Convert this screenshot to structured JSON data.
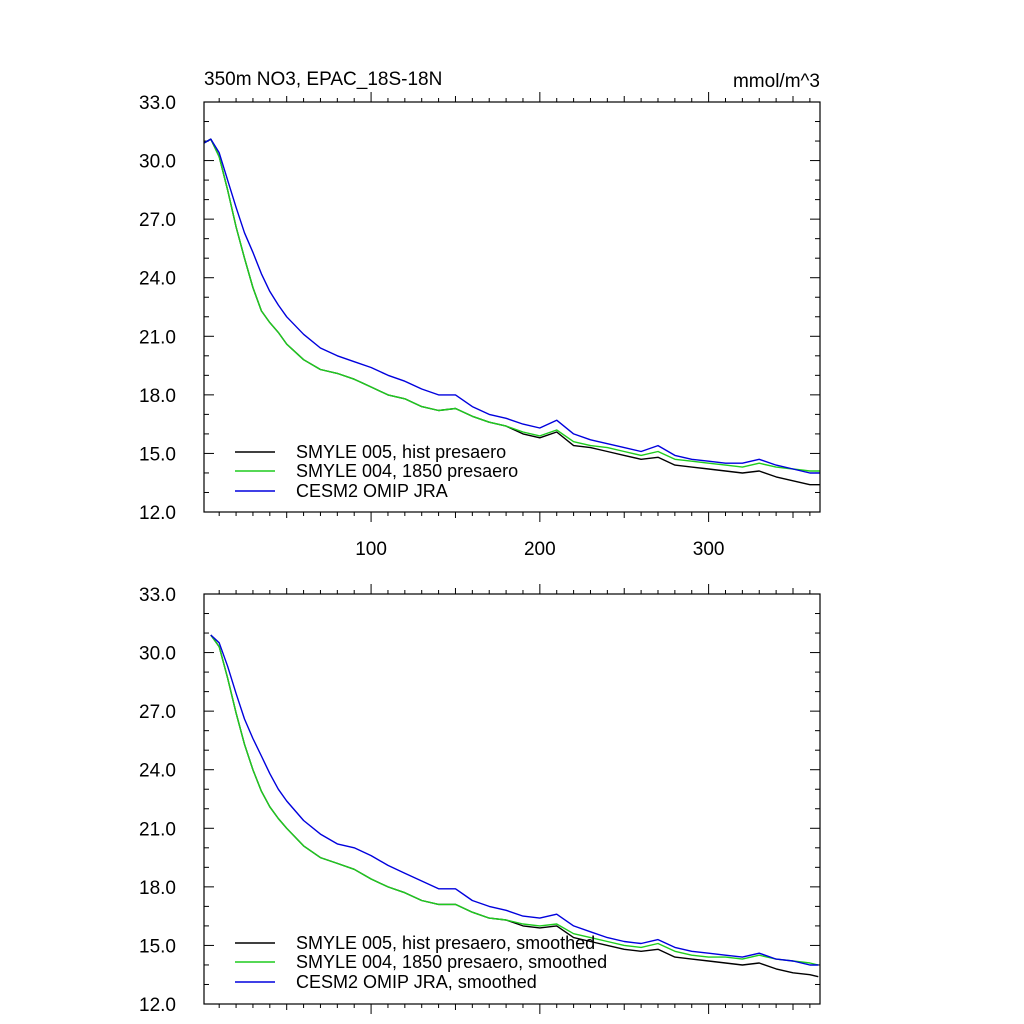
{
  "chart_data": [
    {
      "type": "line",
      "title": "350m NO3, EPAC_18S-18N",
      "units": "mmol/m^3",
      "xlim": [
        1,
        366
      ],
      "ylim": [
        12,
        33
      ],
      "yticks": [
        {
          "v": 12,
          "label": "12.0"
        },
        {
          "v": 15,
          "label": "15.0"
        },
        {
          "v": 18,
          "label": "18.0"
        },
        {
          "v": 21,
          "label": "21.0"
        },
        {
          "v": 24,
          "label": "24.0"
        },
        {
          "v": 27,
          "label": "27.0"
        },
        {
          "v": 30,
          "label": "30.0"
        },
        {
          "v": 33,
          "label": "33.0"
        }
      ],
      "xticks": [
        {
          "v": 100,
          "label": "100"
        },
        {
          "v": 200,
          "label": "200"
        },
        {
          "v": 300,
          "label": "300"
        }
      ],
      "x": [
        1,
        5,
        10,
        15,
        20,
        25,
        30,
        35,
        40,
        45,
        50,
        60,
        70,
        80,
        90,
        100,
        110,
        120,
        130,
        140,
        150,
        160,
        170,
        180,
        190,
        200,
        210,
        220,
        230,
        240,
        250,
        260,
        270,
        280,
        290,
        300,
        310,
        320,
        330,
        340,
        350,
        360,
        366
      ],
      "series": [
        {
          "name": "SMYLE 005, hist presaero",
          "color": "#000000",
          "values": [
            30.9,
            31.1,
            30.2,
            28.5,
            26.6,
            25.0,
            23.5,
            22.3,
            21.7,
            21.2,
            20.6,
            19.8,
            19.3,
            19.1,
            18.8,
            18.4,
            18.0,
            17.8,
            17.4,
            17.2,
            17.3,
            16.9,
            16.6,
            16.4,
            16.0,
            15.8,
            16.1,
            15.4,
            15.3,
            15.1,
            14.9,
            14.7,
            14.8,
            14.4,
            14.3,
            14.2,
            14.1,
            14.0,
            14.1,
            13.8,
            13.6,
            13.4,
            13.4
          ]
        },
        {
          "name": "SMYLE 004, 1850 presaero",
          "color": "#1ecc1e",
          "values": [
            30.9,
            31.1,
            30.2,
            28.5,
            26.6,
            25.0,
            23.5,
            22.3,
            21.7,
            21.2,
            20.6,
            19.8,
            19.3,
            19.1,
            18.8,
            18.4,
            18.0,
            17.8,
            17.4,
            17.2,
            17.3,
            16.9,
            16.6,
            16.4,
            16.1,
            15.9,
            16.2,
            15.6,
            15.4,
            15.3,
            15.1,
            14.9,
            15.1,
            14.7,
            14.6,
            14.5,
            14.4,
            14.3,
            14.5,
            14.3,
            14.2,
            14.1,
            14.1
          ]
        },
        {
          "name": "CESM2 OMIP JRA",
          "color": "#0000dd",
          "values": [
            30.9,
            31.1,
            30.4,
            29.0,
            27.6,
            26.3,
            25.3,
            24.2,
            23.3,
            22.6,
            22.0,
            21.1,
            20.4,
            20.0,
            19.7,
            19.4,
            19.0,
            18.7,
            18.3,
            18.0,
            18.0,
            17.4,
            17.0,
            16.8,
            16.5,
            16.3,
            16.7,
            16.0,
            15.7,
            15.5,
            15.3,
            15.1,
            15.4,
            14.9,
            14.7,
            14.6,
            14.5,
            14.5,
            14.7,
            14.4,
            14.2,
            14.0,
            14.0
          ]
        }
      ],
      "legend": [
        "SMYLE 005, hist presaero",
        "SMYLE 004, 1850 presaero",
        "CESM2 OMIP JRA"
      ]
    },
    {
      "type": "line",
      "title": "",
      "xlim": [
        1,
        366
      ],
      "ylim": [
        12,
        33
      ],
      "yticks": [
        {
          "v": 12,
          "label": "12.0"
        },
        {
          "v": 15,
          "label": "15.0"
        },
        {
          "v": 18,
          "label": "18.0"
        },
        {
          "v": 21,
          "label": "21.0"
        },
        {
          "v": 24,
          "label": "24.0"
        },
        {
          "v": 27,
          "label": "27.0"
        },
        {
          "v": 30,
          "label": "30.0"
        },
        {
          "v": 33,
          "label": "33.0"
        }
      ],
      "xticks": [],
      "x": [
        5,
        10,
        15,
        20,
        25,
        30,
        35,
        40,
        45,
        50,
        60,
        70,
        80,
        90,
        100,
        110,
        120,
        130,
        140,
        150,
        160,
        170,
        180,
        190,
        200,
        210,
        220,
        230,
        240,
        250,
        260,
        270,
        280,
        290,
        300,
        310,
        320,
        330,
        340,
        350,
        360,
        365
      ],
      "series": [
        {
          "name": "SMYLE 005, hist presaero, smoothed",
          "color": "#000000",
          "values": [
            30.9,
            30.3,
            28.7,
            26.9,
            25.3,
            24.0,
            22.9,
            22.1,
            21.5,
            21.0,
            20.1,
            19.5,
            19.2,
            18.9,
            18.4,
            18.0,
            17.7,
            17.3,
            17.1,
            17.1,
            16.7,
            16.4,
            16.3,
            16.0,
            15.9,
            16.0,
            15.4,
            15.2,
            15.0,
            14.8,
            14.7,
            14.8,
            14.4,
            14.3,
            14.2,
            14.1,
            14.0,
            14.1,
            13.8,
            13.6,
            13.5,
            13.4
          ]
        },
        {
          "name": "SMYLE 004, 1850 presaero, smoothed",
          "color": "#1ecc1e",
          "values": [
            30.9,
            30.3,
            28.7,
            26.9,
            25.3,
            24.0,
            22.9,
            22.1,
            21.5,
            21.0,
            20.1,
            19.5,
            19.2,
            18.9,
            18.4,
            18.0,
            17.7,
            17.3,
            17.1,
            17.1,
            16.7,
            16.4,
            16.3,
            16.1,
            16.0,
            16.1,
            15.6,
            15.4,
            15.2,
            15.0,
            14.9,
            15.1,
            14.7,
            14.5,
            14.4,
            14.4,
            14.3,
            14.5,
            14.3,
            14.2,
            14.1,
            14.0
          ]
        },
        {
          "name": "CESM2 OMIP JRA, smoothed",
          "color": "#0000dd",
          "values": [
            30.9,
            30.5,
            29.3,
            27.9,
            26.6,
            25.6,
            24.7,
            23.8,
            23.0,
            22.4,
            21.4,
            20.7,
            20.2,
            20.0,
            19.6,
            19.1,
            18.7,
            18.3,
            17.9,
            17.9,
            17.3,
            17.0,
            16.8,
            16.5,
            16.4,
            16.6,
            16.0,
            15.7,
            15.4,
            15.2,
            15.1,
            15.3,
            14.9,
            14.7,
            14.6,
            14.5,
            14.4,
            14.6,
            14.3,
            14.2,
            14.0,
            14.0
          ]
        }
      ],
      "legend": [
        "SMYLE 005, hist presaero, smoothed",
        "SMYLE 004, 1850 presaero, smoothed",
        "CESM2 OMIP JRA, smoothed"
      ]
    }
  ]
}
